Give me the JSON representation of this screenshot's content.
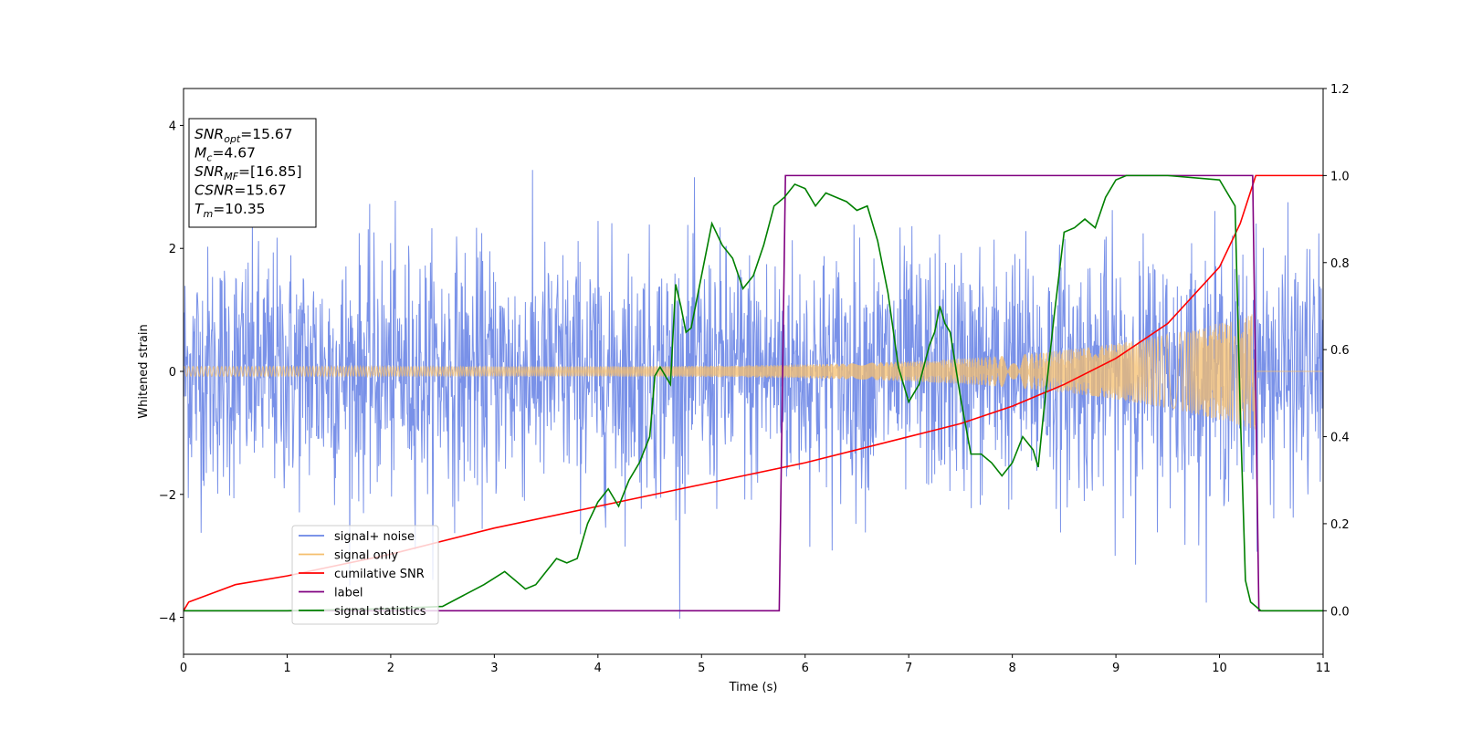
{
  "chart_data": {
    "type": "line",
    "xlabel": "Time (s)",
    "ylabel": "Whitened strain",
    "xlim": [
      0,
      11
    ],
    "ylim_left": [
      -4.6,
      4.6
    ],
    "ylim_right": [
      -0.1,
      1.2
    ],
    "x_ticks": [
      "0",
      "1",
      "2",
      "3",
      "4",
      "5",
      "6",
      "7",
      "8",
      "9",
      "10",
      "11"
    ],
    "y_left_ticks": [
      "−4",
      "−2",
      "0",
      "2",
      "4"
    ],
    "y_right_ticks": [
      "0.0",
      "0.2",
      "0.4",
      "0.6",
      "0.8",
      "1.0",
      "1.2"
    ],
    "grid": false,
    "legend_position": "lower-left",
    "series": [
      {
        "name": "signal+ noise",
        "axis": "left",
        "color": "#6a85e6",
        "kind": "noisy-band",
        "duration": 11,
        "noise_std": 1.0
      },
      {
        "name": "signal only",
        "axis": "left",
        "color": "#f5bf6e",
        "kind": "chirp",
        "amplitude_start": 0.08,
        "amplitude_end": 0.95,
        "merger_time": 10.35
      },
      {
        "name": "cumilative SNR",
        "axis": "right",
        "color": "#ff0000",
        "x": [
          0,
          0.05,
          0.5,
          1,
          2,
          3,
          4,
          5,
          6,
          7,
          7.5,
          8,
          8.5,
          9,
          9.5,
          10,
          10.2,
          10.35,
          11
        ],
        "y": [
          0.0,
          0.02,
          0.06,
          0.08,
          0.13,
          0.19,
          0.24,
          0.29,
          0.34,
          0.4,
          0.43,
          0.47,
          0.52,
          0.58,
          0.66,
          0.79,
          0.89,
          1.0,
          1.0
        ]
      },
      {
        "name": "label",
        "axis": "right",
        "color": "#800080",
        "x": [
          0,
          5.75,
          5.81,
          10.32,
          10.38,
          11
        ],
        "y": [
          0.0,
          0.0,
          1.0,
          1.0,
          0.0,
          0.0
        ]
      },
      {
        "name": "signal statistics",
        "axis": "right",
        "color": "#008000",
        "x": [
          0,
          1,
          2,
          2.5,
          2.7,
          2.9,
          3.1,
          3.3,
          3.4,
          3.5,
          3.6,
          3.7,
          3.8,
          3.9,
          4.0,
          4.1,
          4.2,
          4.3,
          4.4,
          4.5,
          4.55,
          4.6,
          4.7,
          4.75,
          4.8,
          4.85,
          4.9,
          5.0,
          5.1,
          5.2,
          5.3,
          5.4,
          5.5,
          5.6,
          5.7,
          5.8,
          5.9,
          6.0,
          6.1,
          6.2,
          6.3,
          6.4,
          6.5,
          6.6,
          6.7,
          6.8,
          6.9,
          7.0,
          7.1,
          7.2,
          7.25,
          7.3,
          7.35,
          7.4,
          7.5,
          7.6,
          7.7,
          7.8,
          7.9,
          8.0,
          8.1,
          8.2,
          8.25,
          8.3,
          8.4,
          8.5,
          8.6,
          8.7,
          8.8,
          8.9,
          9.0,
          9.1,
          9.5,
          10.0,
          10.15,
          10.2,
          10.25,
          10.3,
          10.35,
          10.4,
          11
        ],
        "y": [
          0.0,
          0.0,
          0.005,
          0.01,
          0.035,
          0.06,
          0.09,
          0.05,
          0.06,
          0.09,
          0.12,
          0.11,
          0.12,
          0.2,
          0.25,
          0.28,
          0.24,
          0.3,
          0.34,
          0.4,
          0.54,
          0.56,
          0.52,
          0.75,
          0.7,
          0.64,
          0.65,
          0.77,
          0.89,
          0.84,
          0.81,
          0.74,
          0.77,
          0.84,
          0.93,
          0.95,
          0.98,
          0.97,
          0.93,
          0.96,
          0.95,
          0.94,
          0.92,
          0.93,
          0.85,
          0.73,
          0.56,
          0.48,
          0.52,
          0.61,
          0.64,
          0.7,
          0.66,
          0.64,
          0.49,
          0.36,
          0.36,
          0.34,
          0.31,
          0.34,
          0.4,
          0.37,
          0.33,
          0.45,
          0.67,
          0.87,
          0.88,
          0.9,
          0.88,
          0.95,
          0.99,
          1.0,
          1.0,
          0.99,
          0.93,
          0.46,
          0.07,
          0.02,
          0.01,
          0.0,
          0.0
        ]
      }
    ],
    "annotation_box": [
      {
        "base": "SNR",
        "sub": "opt",
        "value": "=15.67"
      },
      {
        "base": "M",
        "sub": "c",
        "value": "=4.67"
      },
      {
        "base": "SNR",
        "sub": "MF",
        "value": "=[16.85]"
      },
      {
        "base": "CSNR",
        "sub": "",
        "value": "=15.67"
      },
      {
        "base": "T",
        "sub": "m",
        "value": "=10.35"
      }
    ]
  }
}
